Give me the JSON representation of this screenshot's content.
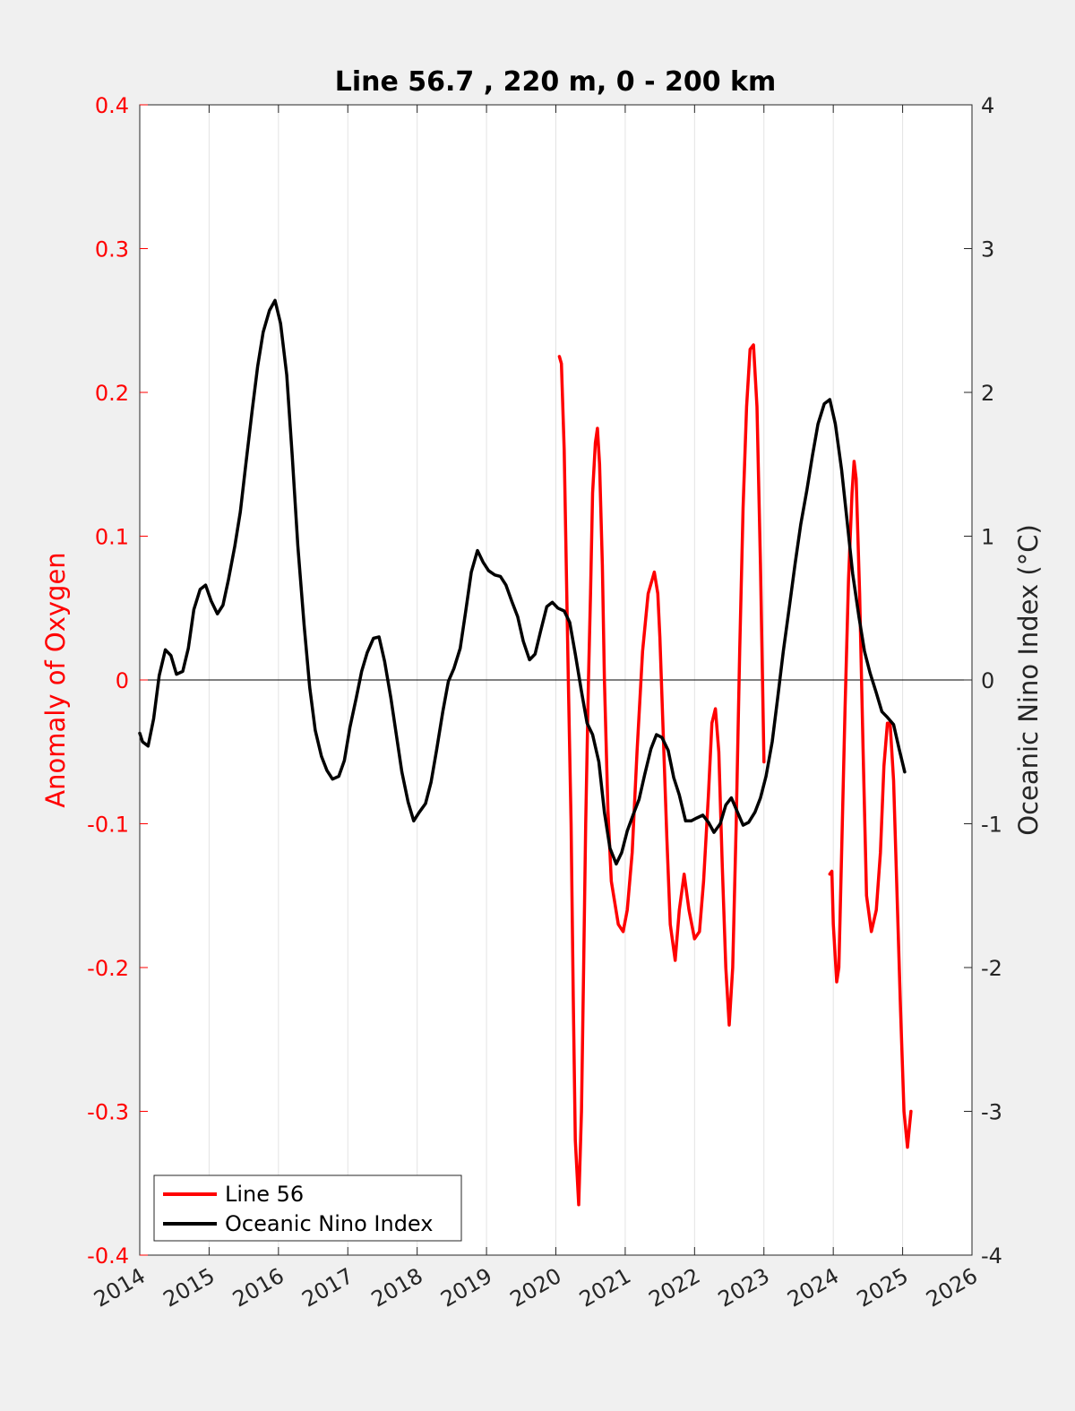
{
  "chart_data": {
    "type": "line",
    "title": "Line 56.7 , 220 m, 0 - 200 km",
    "ylabel_left": "Anomaly of Oxygen",
    "ylabel_right": "Oceanic Nino Index (°C)",
    "xlim": [
      2014,
      2026
    ],
    "ylim_left": [
      -0.4,
      0.4
    ],
    "ylim_right": [
      -4,
      4
    ],
    "x_ticks": [
      "2014",
      "2015",
      "2016",
      "2017",
      "2018",
      "2019",
      "2020",
      "2021",
      "2022",
      "2023",
      "2024",
      "2025",
      "2026"
    ],
    "left_ticks": [
      "-0.4",
      "-0.3",
      "-0.2",
      "-0.1",
      "0",
      "0.1",
      "0.2",
      "0.3",
      "0.4"
    ],
    "right_ticks": [
      "-4",
      "-3",
      "-2",
      "-1",
      "0",
      "1",
      "2",
      "3",
      "4"
    ],
    "grid": "vertical",
    "legend_position": "bottom-left",
    "colors": {
      "line56": "#ff0000",
      "oni": "#000000",
      "left_axis": "#ff0000",
      "right_axis": "#262626"
    },
    "series": [
      {
        "name": "Line 56",
        "axis": "left",
        "segments": [
          [
            [
              2020.05,
              0.225
            ],
            [
              2020.08,
              0.22
            ],
            [
              2020.12,
              0.16
            ],
            [
              2020.15,
              0.08
            ],
            [
              2020.18,
              0.0
            ],
            [
              2020.22,
              -0.1
            ],
            [
              2020.25,
              -0.22
            ],
            [
              2020.28,
              -0.32
            ],
            [
              2020.33,
              -0.365
            ],
            [
              2020.37,
              -0.3
            ],
            [
              2020.4,
              -0.2
            ],
            [
              2020.43,
              -0.1
            ],
            [
              2020.47,
              0.0
            ],
            [
              2020.5,
              0.06
            ],
            [
              2020.53,
              0.13
            ],
            [
              2020.57,
              0.165
            ],
            [
              2020.6,
              0.175
            ],
            [
              2020.63,
              0.15
            ],
            [
              2020.67,
              0.08
            ],
            [
              2020.7,
              0.0
            ],
            [
              2020.75,
              -0.09
            ],
            [
              2020.8,
              -0.14
            ],
            [
              2020.9,
              -0.17
            ],
            [
              2020.97,
              -0.175
            ],
            [
              2021.03,
              -0.16
            ],
            [
              2021.1,
              -0.12
            ],
            [
              2021.17,
              -0.05
            ],
            [
              2021.25,
              0.02
            ],
            [
              2021.33,
              0.06
            ],
            [
              2021.42,
              0.075
            ],
            [
              2021.47,
              0.06
            ],
            [
              2021.5,
              0.03
            ],
            [
              2021.55,
              -0.04
            ],
            [
              2021.6,
              -0.11
            ],
            [
              2021.65,
              -0.17
            ],
            [
              2021.72,
              -0.195
            ],
            [
              2021.78,
              -0.16
            ],
            [
              2021.85,
              -0.135
            ],
            [
              2021.92,
              -0.16
            ],
            [
              2022.0,
              -0.18
            ],
            [
              2022.07,
              -0.175
            ],
            [
              2022.13,
              -0.14
            ],
            [
              2022.2,
              -0.08
            ],
            [
              2022.25,
              -0.03
            ],
            [
              2022.3,
              -0.02
            ],
            [
              2022.35,
              -0.05
            ],
            [
              2022.4,
              -0.13
            ],
            [
              2022.45,
              -0.2
            ],
            [
              2022.5,
              -0.24
            ],
            [
              2022.55,
              -0.2
            ],
            [
              2022.6,
              -0.1
            ],
            [
              2022.65,
              0.02
            ],
            [
              2022.7,
              0.12
            ],
            [
              2022.75,
              0.19
            ],
            [
              2022.8,
              0.23
            ],
            [
              2022.85,
              0.233
            ],
            [
              2022.9,
              0.19
            ],
            [
              2022.95,
              0.08
            ],
            [
              2023.0,
              -0.057
            ]
          ],
          [
            [
              2023.95,
              -0.135
            ],
            [
              2023.98,
              -0.133
            ],
            [
              2024.0,
              -0.17
            ],
            [
              2024.05,
              -0.21
            ],
            [
              2024.08,
              -0.2
            ],
            [
              2024.12,
              -0.12
            ],
            [
              2024.17,
              -0.02
            ],
            [
              2024.22,
              0.07
            ],
            [
              2024.27,
              0.13
            ],
            [
              2024.3,
              0.152
            ],
            [
              2024.33,
              0.14
            ],
            [
              2024.38,
              0.06
            ],
            [
              2024.43,
              -0.05
            ],
            [
              2024.48,
              -0.15
            ],
            [
              2024.55,
              -0.175
            ],
            [
              2024.62,
              -0.16
            ],
            [
              2024.68,
              -0.12
            ],
            [
              2024.73,
              -0.06
            ],
            [
              2024.78,
              -0.03
            ],
            [
              2024.82,
              -0.03
            ],
            [
              2024.87,
              -0.07
            ],
            [
              2024.92,
              -0.15
            ],
            [
              2024.97,
              -0.23
            ],
            [
              2025.02,
              -0.3
            ],
            [
              2025.07,
              -0.325
            ],
            [
              2025.1,
              -0.31
            ],
            [
              2025.12,
              -0.3
            ]
          ]
        ]
      },
      {
        "name": "Oceanic Nino Index",
        "axis": "right",
        "points": [
          [
            2014.0,
            -0.37
          ],
          [
            2014.04,
            -0.43
          ],
          [
            2014.12,
            -0.46
          ],
          [
            2014.2,
            -0.27
          ],
          [
            2014.28,
            0.03
          ],
          [
            2014.37,
            0.21
          ],
          [
            2014.45,
            0.17
          ],
          [
            2014.53,
            0.04
          ],
          [
            2014.62,
            0.06
          ],
          [
            2014.7,
            0.22
          ],
          [
            2014.78,
            0.49
          ],
          [
            2014.87,
            0.63
          ],
          [
            2014.95,
            0.66
          ],
          [
            2015.03,
            0.55
          ],
          [
            2015.12,
            0.46
          ],
          [
            2015.2,
            0.52
          ],
          [
            2015.28,
            0.7
          ],
          [
            2015.37,
            0.93
          ],
          [
            2015.45,
            1.17
          ],
          [
            2015.53,
            1.5
          ],
          [
            2015.62,
            1.87
          ],
          [
            2015.7,
            2.18
          ],
          [
            2015.78,
            2.42
          ],
          [
            2015.87,
            2.57
          ],
          [
            2015.95,
            2.64
          ],
          [
            2016.03,
            2.48
          ],
          [
            2016.12,
            2.12
          ],
          [
            2016.2,
            1.55
          ],
          [
            2016.28,
            0.93
          ],
          [
            2016.37,
            0.38
          ],
          [
            2016.45,
            -0.05
          ],
          [
            2016.53,
            -0.35
          ],
          [
            2016.62,
            -0.53
          ],
          [
            2016.7,
            -0.63
          ],
          [
            2016.78,
            -0.69
          ],
          [
            2016.87,
            -0.67
          ],
          [
            2016.95,
            -0.56
          ],
          [
            2017.03,
            -0.33
          ],
          [
            2017.12,
            -0.13
          ],
          [
            2017.2,
            0.06
          ],
          [
            2017.28,
            0.19
          ],
          [
            2017.37,
            0.29
          ],
          [
            2017.45,
            0.3
          ],
          [
            2017.53,
            0.13
          ],
          [
            2017.62,
            -0.12
          ],
          [
            2017.7,
            -0.38
          ],
          [
            2017.78,
            -0.64
          ],
          [
            2017.87,
            -0.85
          ],
          [
            2017.95,
            -0.98
          ],
          [
            2018.03,
            -0.92
          ],
          [
            2018.12,
            -0.86
          ],
          [
            2018.2,
            -0.71
          ],
          [
            2018.28,
            -0.49
          ],
          [
            2018.37,
            -0.22
          ],
          [
            2018.45,
            -0.01
          ],
          [
            2018.53,
            0.08
          ],
          [
            2018.62,
            0.22
          ],
          [
            2018.7,
            0.48
          ],
          [
            2018.78,
            0.75
          ],
          [
            2018.87,
            0.9
          ],
          [
            2018.95,
            0.82
          ],
          [
            2019.03,
            0.76
          ],
          [
            2019.12,
            0.73
          ],
          [
            2019.2,
            0.72
          ],
          [
            2019.28,
            0.66
          ],
          [
            2019.37,
            0.54
          ],
          [
            2019.45,
            0.44
          ],
          [
            2019.53,
            0.27
          ],
          [
            2019.62,
            0.14
          ],
          [
            2019.7,
            0.18
          ],
          [
            2019.78,
            0.34
          ],
          [
            2019.87,
            0.51
          ],
          [
            2019.95,
            0.54
          ],
          [
            2020.03,
            0.5
          ],
          [
            2020.12,
            0.48
          ],
          [
            2020.2,
            0.4
          ],
          [
            2020.28,
            0.18
          ],
          [
            2020.37,
            -0.08
          ],
          [
            2020.45,
            -0.3
          ],
          [
            2020.53,
            -0.38
          ],
          [
            2020.62,
            -0.57
          ],
          [
            2020.7,
            -0.92
          ],
          [
            2020.78,
            -1.17
          ],
          [
            2020.87,
            -1.28
          ],
          [
            2020.95,
            -1.2
          ],
          [
            2021.03,
            -1.05
          ],
          [
            2021.12,
            -0.93
          ],
          [
            2021.2,
            -0.83
          ],
          [
            2021.28,
            -0.66
          ],
          [
            2021.37,
            -0.48
          ],
          [
            2021.45,
            -0.38
          ],
          [
            2021.53,
            -0.4
          ],
          [
            2021.62,
            -0.49
          ],
          [
            2021.7,
            -0.68
          ],
          [
            2021.78,
            -0.8
          ],
          [
            2021.87,
            -0.98
          ],
          [
            2021.95,
            -0.98
          ],
          [
            2022.03,
            -0.96
          ],
          [
            2022.12,
            -0.94
          ],
          [
            2022.2,
            -0.99
          ],
          [
            2022.28,
            -1.06
          ],
          [
            2022.37,
            -1.0
          ],
          [
            2022.45,
            -0.87
          ],
          [
            2022.53,
            -0.82
          ],
          [
            2022.62,
            -0.92
          ],
          [
            2022.7,
            -1.01
          ],
          [
            2022.78,
            -0.99
          ],
          [
            2022.87,
            -0.92
          ],
          [
            2022.95,
            -0.82
          ],
          [
            2023.03,
            -0.67
          ],
          [
            2023.12,
            -0.43
          ],
          [
            2023.2,
            -0.12
          ],
          [
            2023.28,
            0.2
          ],
          [
            2023.37,
            0.52
          ],
          [
            2023.45,
            0.81
          ],
          [
            2023.53,
            1.08
          ],
          [
            2023.62,
            1.32
          ],
          [
            2023.7,
            1.56
          ],
          [
            2023.78,
            1.78
          ],
          [
            2023.87,
            1.92
          ],
          [
            2023.95,
            1.95
          ],
          [
            2024.03,
            1.78
          ],
          [
            2024.12,
            1.46
          ],
          [
            2024.2,
            1.1
          ],
          [
            2024.28,
            0.74
          ],
          [
            2024.37,
            0.44
          ],
          [
            2024.45,
            0.2
          ],
          [
            2024.53,
            0.05
          ],
          [
            2024.62,
            -0.09
          ],
          [
            2024.7,
            -0.22
          ],
          [
            2024.78,
            -0.26
          ],
          [
            2024.87,
            -0.31
          ],
          [
            2024.95,
            -0.48
          ],
          [
            2025.03,
            -0.64
          ]
        ]
      }
    ]
  }
}
